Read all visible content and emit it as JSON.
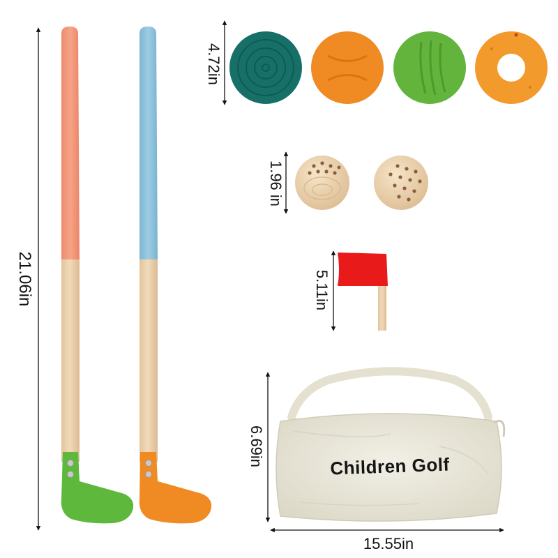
{
  "measurements": {
    "club_length": "21.06in",
    "disc_diameter": "4.72in",
    "ball_diameter": "1.96 in",
    "flag_height": "5.11in",
    "bag_height": "6.69in",
    "bag_width": "15.55in"
  },
  "bag": {
    "print_text": "Children Golf"
  },
  "colors": {
    "club_1_grip": "#F4967A",
    "club_1_head": "#5DB83C",
    "club_2_grip": "#8EC3DD",
    "club_2_head": "#F08A22",
    "disc_teal": "#177068",
    "disc_orange": "#F08A22",
    "disc_green": "#62B43C",
    "disc_ring": "#F29A2C",
    "flag_red": "#E81A1A",
    "wood": "#EBCFAA",
    "bag_canvas": "#ECEADD"
  },
  "icons": [
    "ruler-arrow-icon"
  ]
}
